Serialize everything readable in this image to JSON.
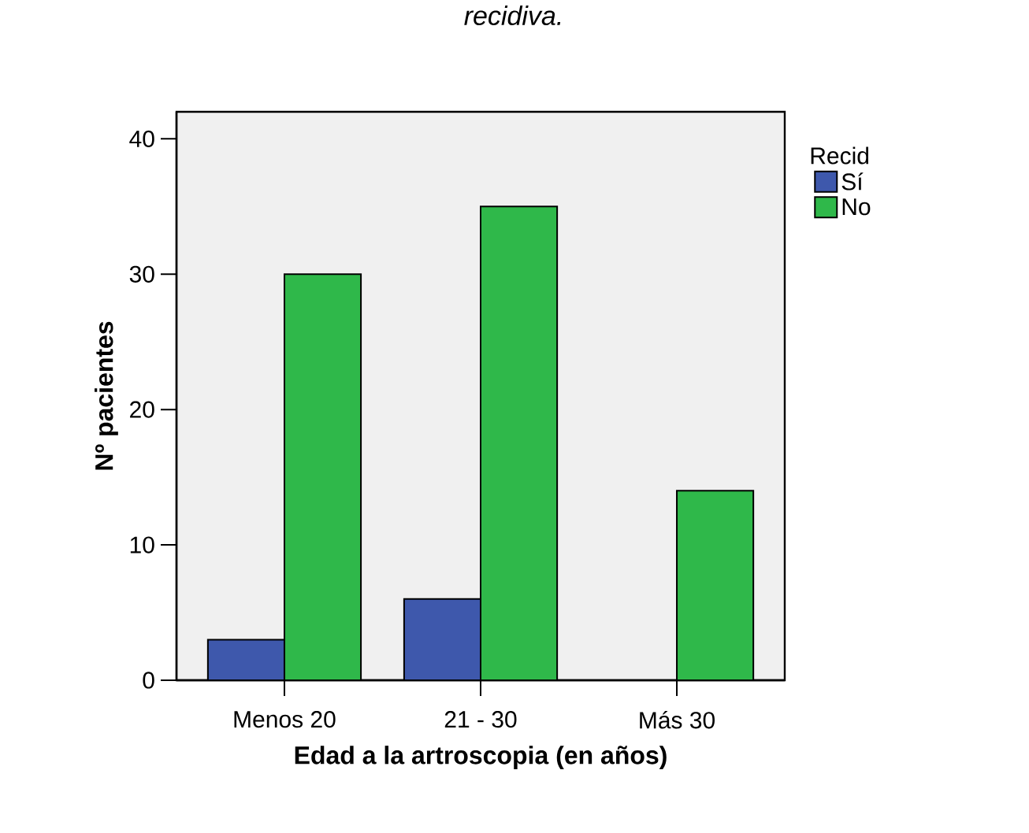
{
  "chart_data": {
    "type": "bar",
    "title": "recidiva.",
    "xlabel": "Edad a la artroscopia (en años)",
    "ylabel": "Nº pacientes",
    "legend_title": "Recid",
    "categories": [
      "Menos 20",
      "21 - 30",
      "Más 30"
    ],
    "series": [
      {
        "name": "Sí",
        "color": "#3e58ac",
        "values": [
          3,
          6,
          null
        ]
      },
      {
        "name": "No",
        "color": "#2fb84a",
        "values": [
          30,
          35,
          14
        ]
      }
    ],
    "ylim": [
      0,
      42
    ],
    "yticks": [
      0,
      10,
      20,
      30,
      40
    ],
    "legend": "right"
  }
}
